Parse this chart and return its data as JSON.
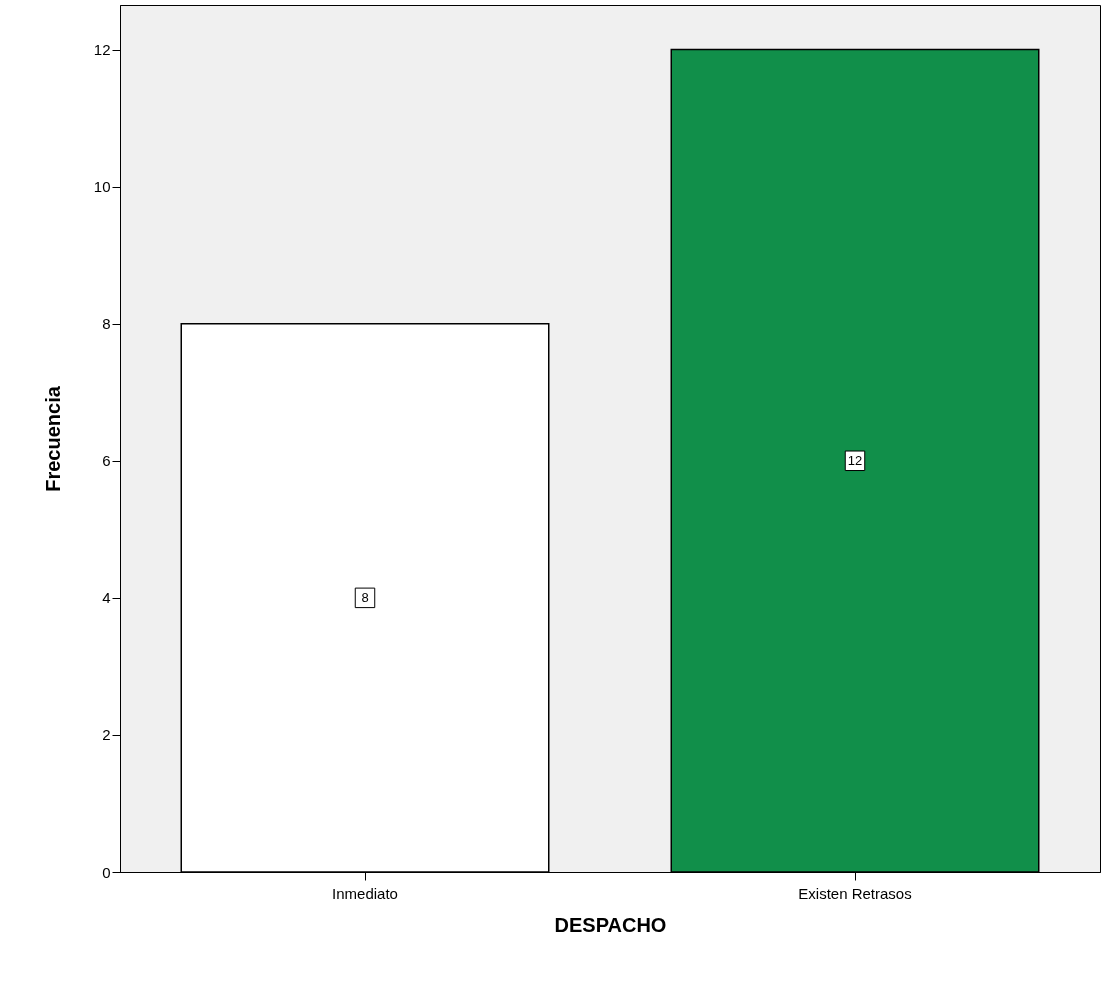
{
  "chart_data": {
    "type": "bar",
    "xlabel": "DESPACHO",
    "ylabel": "Frecuencia",
    "categories": [
      "Inmediato",
      "Existen Retrasos"
    ],
    "values": [
      8,
      12
    ],
    "colors": [
      "#ffffff",
      "#118f4a"
    ],
    "ylim": [
      0,
      12.65
    ],
    "yticks": [
      0,
      2,
      4,
      6,
      8,
      10,
      12
    ],
    "grid": false,
    "data_labels": true
  }
}
